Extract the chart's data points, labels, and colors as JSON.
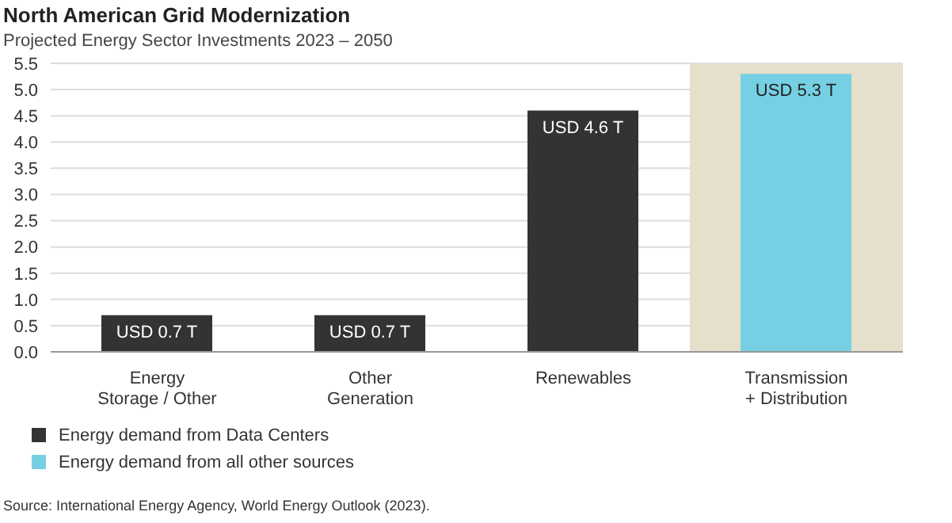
{
  "chart_data": {
    "type": "bar",
    "title": "North American Grid Modernization",
    "subtitle": "Projected Energy Sector Investments 2023 – 2050",
    "categories": [
      "Energy\nStorage / Other",
      "Other\nGeneration",
      "Renewables",
      "Transmission\n+ Distribution"
    ],
    "series": [
      {
        "name": "Energy demand from Data Centers",
        "color": "#333333",
        "values": [
          0.7,
          0.7,
          4.6,
          null
        ],
        "value_labels": [
          "USD 0.7 T",
          "USD 0.7 T",
          "USD 4.6 T",
          null
        ]
      },
      {
        "name": "Energy demand from all other sources",
        "color": "#76d0e3",
        "values": [
          null,
          null,
          null,
          5.3
        ],
        "value_labels": [
          null,
          null,
          null,
          "USD 5.3 T"
        ]
      }
    ],
    "stacked": true,
    "ylim": [
      0,
      5.5
    ],
    "yticks": [
      {
        "value": 0,
        "label": "0.0"
      },
      {
        "value": 0.5,
        "label": "0.5"
      },
      {
        "value": 1,
        "label": "1.0"
      },
      {
        "value": 1.5,
        "label": "1.5"
      },
      {
        "value": 2,
        "label": "2.0"
      },
      {
        "value": 2.5,
        "label": "2.5"
      },
      {
        "value": 3,
        "label": "3.0"
      },
      {
        "value": 3.5,
        "label": "3.5"
      },
      {
        "value": 4,
        "label": "4.0"
      },
      {
        "value": 4.5,
        "label": "4.5"
      },
      {
        "value": 5,
        "label": "5.0"
      },
      {
        "value": 5.5,
        "label": "5.5"
      }
    ],
    "grid": "y",
    "bands": [
      {
        "axis": "x",
        "from": "Transmission\n+ Distribution",
        "to": "Transmission\n+ Distribution",
        "color": "#e6dfcb"
      }
    ],
    "legend": "bottom left",
    "annotations": [
      "Source: International Energy Agency, World Energy Outlook (2023)."
    ]
  }
}
